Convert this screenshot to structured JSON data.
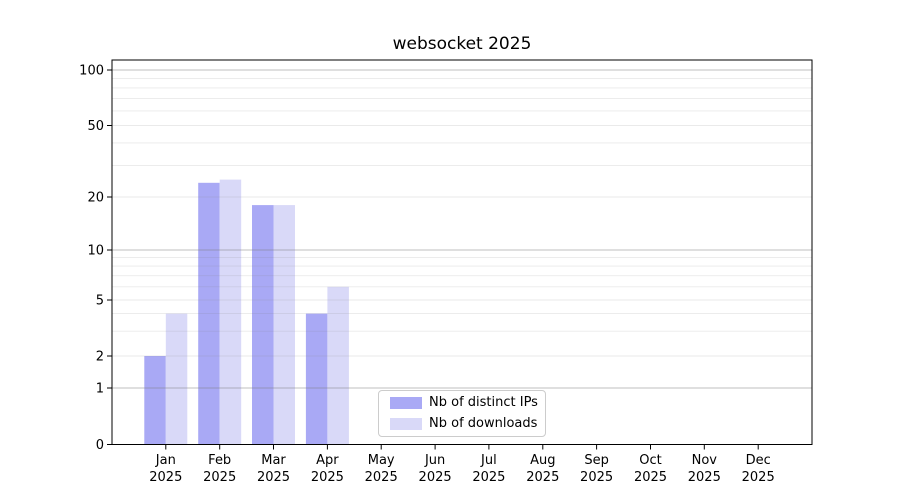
{
  "chart_data": {
    "type": "bar",
    "title": "websocket 2025",
    "categories": [
      "Jan",
      "Feb",
      "Mar",
      "Apr",
      "May",
      "Jun",
      "Jul",
      "Aug",
      "Sep",
      "Oct",
      "Nov",
      "Dec"
    ],
    "year_label": "2025",
    "series": [
      {
        "name": "Nb of distinct IPs",
        "color": "#a9a9f5",
        "values": [
          2,
          24,
          18,
          4,
          0,
          0,
          0,
          0,
          0,
          0,
          0,
          0
        ]
      },
      {
        "name": "Nb of downloads",
        "color": "#d9d9f8",
        "values": [
          4,
          25,
          18,
          6,
          0,
          0,
          0,
          0,
          0,
          0,
          0,
          0
        ]
      }
    ],
    "xlabel": "",
    "ylabel": "",
    "y_ticks": [
      0,
      1,
      2,
      5,
      10,
      20,
      50,
      100
    ],
    "major_gridlines": [
      1,
      10,
      100
    ],
    "minor_gridlines": [
      2,
      3,
      4,
      5,
      6,
      7,
      8,
      9,
      20,
      30,
      40,
      50,
      60,
      70,
      80,
      90
    ],
    "ylim": [
      0,
      100
    ],
    "yscale": "log-like",
    "grid": true,
    "legend": {
      "position": "lower-center-inside",
      "entries": [
        "Nb of distinct IPs",
        "Nb of downloads"
      ]
    }
  },
  "colors": {
    "background": "#ffffff",
    "axis": "#000000",
    "grid_base": "#808080",
    "legend_border": "#cccccc"
  }
}
